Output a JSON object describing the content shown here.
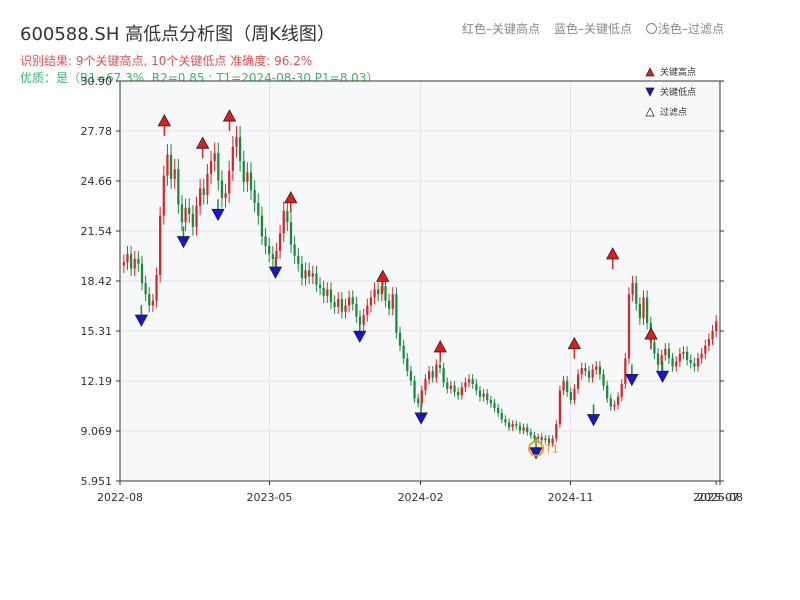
{
  "header": {
    "title": "600588.SH 高低点分析图（周K线图）",
    "subtitle_red": "红色–关键高点",
    "subtitle_blue": "蓝色–关键低点",
    "subtitle_light": "浅色–过滤点",
    "result_text": "识别结果: 9个关键高点, 10个关键低点  准确度: 96.2%",
    "quality_text": "优质：是（R1=67.3%, R2=0.85 ; T1=2024-08-30 P1=8.03）"
  },
  "colors": {
    "up": "#d62728",
    "down": "#1a8a3a",
    "high_marker": "#e31a1c",
    "low_marker": "#1515d8",
    "t1_ring": "#f29b1b",
    "result_text": "#e05050",
    "quality_text": "#3cb371",
    "plot_bg": "#f7f8fa",
    "grid": "#e3e5ea"
  },
  "chart_data": {
    "type": "candlestick",
    "x_tick_labels": [
      "2022-08",
      "2023-05",
      "2024-02",
      "2024-11",
      "2025-07",
      "2025-08"
    ],
    "y_tick_labels": [
      "5.951",
      "9.069",
      "12.19",
      "15.31",
      "18.42",
      "21.54",
      "24.66",
      "27.78",
      "30.90"
    ],
    "ylim": [
      5.951,
      30.9
    ],
    "grid": true,
    "legend": {
      "position": "top-right",
      "entries": [
        "关键高点",
        "关键低点",
        "过滤点"
      ]
    },
    "annotation_label": "T1",
    "key_highs": [
      {
        "date": "2022-10-21",
        "value": 28.1
      },
      {
        "date": "2022-12-30",
        "value": 26.7
      },
      {
        "date": "2023-02-17",
        "value": 28.4
      },
      {
        "date": "2023-06-09",
        "value": 23.3
      },
      {
        "date": "2023-11-24",
        "value": 18.4
      },
      {
        "date": "2024-03-08",
        "value": 14.0
      },
      {
        "date": "2024-11-08",
        "value": 14.2
      },
      {
        "date": "2025-01-17",
        "value": 19.8
      },
      {
        "date": "2025-03-28",
        "value": 14.8
      }
    ],
    "key_lows": [
      {
        "date": "2022-09-09",
        "value": 16.3
      },
      {
        "date": "2022-11-25",
        "value": 21.2
      },
      {
        "date": "2023-01-27",
        "value": 22.9
      },
      {
        "date": "2023-05-12",
        "value": 19.3
      },
      {
        "date": "2023-10-13",
        "value": 15.3
      },
      {
        "date": "2024-02-02",
        "value": 10.2
      },
      {
        "date": "2024-08-30",
        "value": 8.03
      },
      {
        "date": "2024-12-13",
        "value": 10.1
      },
      {
        "date": "2025-02-21",
        "value": 12.6
      },
      {
        "date": "2025-04-18",
        "value": 12.8
      }
    ],
    "t1_point": {
      "date": "2024-08-30",
      "value": 8.03
    },
    "weekly_closes": [
      19.6,
      20.1,
      19.2,
      19.8,
      19.5,
      18.3,
      17.6,
      16.9,
      17.2,
      18.8,
      22.5,
      25.0,
      26.3,
      24.8,
      25.4,
      23.2,
      22.1,
      23.0,
      22.6,
      21.8,
      23.1,
      24.2,
      23.8,
      25.1,
      25.9,
      26.4,
      24.7,
      23.6,
      23.9,
      25.3,
      26.8,
      27.4,
      25.9,
      24.6,
      25.2,
      24.1,
      23.3,
      22.5,
      21.2,
      20.6,
      20.1,
      19.8,
      20.3,
      21.4,
      22.8,
      22.1,
      20.7,
      20.0,
      19.5,
      18.6,
      19.1,
      18.7,
      18.9,
      18.2,
      18.0,
      17.5,
      17.9,
      17.1,
      16.8,
      17.3,
      16.5,
      16.9,
      17.4,
      17.0,
      16.2,
      15.7,
      16.3,
      16.9,
      17.4,
      17.9,
      17.6,
      18.1,
      17.2,
      16.7,
      17.6,
      15.2,
      14.4,
      13.6,
      12.8,
      12.2,
      11.1,
      10.8,
      11.6,
      12.3,
      12.8,
      12.4,
      13.2,
      13.0,
      12.1,
      11.7,
      11.9,
      11.5,
      11.3,
      11.8,
      12.1,
      12.3,
      12.0,
      11.6,
      11.2,
      11.4,
      11.0,
      10.8,
      10.5,
      10.2,
      9.8,
      9.6,
      9.3,
      9.5,
      9.4,
      9.1,
      9.3,
      9.0,
      8.8,
      8.6,
      8.7,
      8.5,
      8.6,
      8.3,
      8.6,
      9.5,
      11.6,
      12.2,
      11.5,
      11.0,
      11.7,
      12.6,
      13.0,
      12.8,
      12.4,
      12.9,
      13.1,
      12.6,
      11.9,
      11.1,
      10.6,
      10.7,
      11.2,
      12.0,
      13.6,
      17.6,
      18.3,
      17.0,
      16.1,
      17.4,
      15.8,
      14.6,
      13.9,
      13.2,
      13.8,
      14.2,
      13.6,
      13.1,
      13.4,
      13.9,
      14.0,
      13.5,
      13.3,
      13.1,
      13.6,
      13.9,
      14.4,
      14.8,
      15.3,
      15.9
    ]
  }
}
